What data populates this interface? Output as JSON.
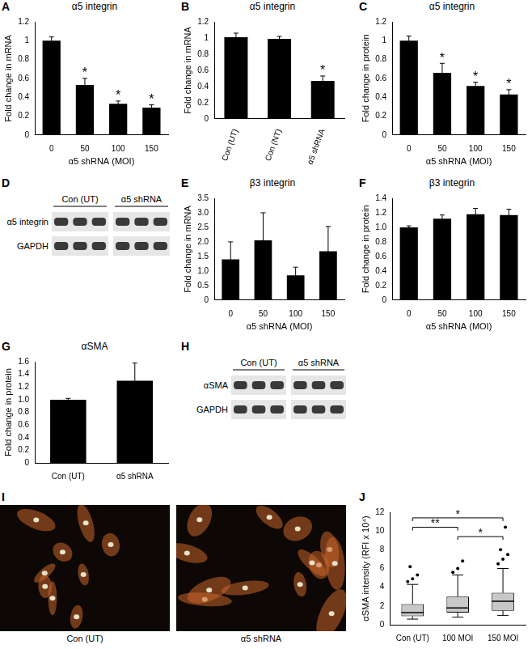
{
  "chart_data": [
    {
      "panel": "A",
      "type": "bar",
      "title": "α5 integrin",
      "categories": [
        "0",
        "50",
        "100",
        "150"
      ],
      "values": [
        1.0,
        0.53,
        0.33,
        0.29
      ],
      "errors": [
        0.04,
        0.07,
        0.03,
        0.03
      ],
      "annotations": [
        {
          "category": "50",
          "text": "*"
        },
        {
          "category": "100",
          "text": "*"
        },
        {
          "category": "150",
          "text": "*"
        }
      ],
      "x_label": "α5 shRNA (MOI)",
      "y_label": "Fold change in mRNA",
      "ylim": [
        0,
        1.2
      ],
      "yticks": [
        0,
        0.2,
        0.4,
        0.6,
        0.8,
        1,
        1.2
      ],
      "color": "#000000",
      "grid": false
    },
    {
      "panel": "B",
      "type": "bar",
      "title": "α5 integrin",
      "categories": [
        "Con (UT)",
        "Con (NT)",
        "α5 shRNA"
      ],
      "values": [
        1.01,
        0.99,
        0.47
      ],
      "errors": [
        0.05,
        0.03,
        0.06
      ],
      "annotations": [
        {
          "category": "α5 shRNA",
          "text": "*"
        }
      ],
      "y_label": "Fold change in mRNA",
      "ylim": [
        0,
        1.2
      ],
      "yticks": [
        0,
        0.2,
        0.4,
        0.6,
        0.8,
        1,
        1.2
      ],
      "color": "#000000",
      "grid": false
    },
    {
      "panel": "C",
      "type": "bar",
      "title": "α5 integrin",
      "categories": [
        "0",
        "50",
        "100",
        "150"
      ],
      "values": [
        1.0,
        0.66,
        0.52,
        0.43
      ],
      "errors": [
        0.05,
        0.1,
        0.04,
        0.05
      ],
      "annotations": [
        {
          "category": "50",
          "text": "*"
        },
        {
          "category": "100",
          "text": "*"
        },
        {
          "category": "150",
          "text": "*"
        }
      ],
      "x_label": "α5 shRNA (MOI)",
      "y_label": "Fold change in protein",
      "ylim": [
        0,
        1.2
      ],
      "yticks": [
        0,
        0.2,
        0.4,
        0.6,
        0.8,
        1,
        1.2
      ],
      "color": "#000000",
      "grid": false
    },
    {
      "panel": "E",
      "type": "bar",
      "title": "β3 integrin",
      "categories": [
        "0",
        "50",
        "100",
        "150"
      ],
      "values": [
        1.4,
        2.05,
        0.85,
        1.68
      ],
      "errors": [
        0.6,
        0.95,
        0.28,
        0.85
      ],
      "x_label": "α5 shRNA (MOI)",
      "y_label": "Fold change in mRNA",
      "ylim": [
        0,
        3.5
      ],
      "yticks": [
        0,
        0.5,
        {
          "value": 1,
          "label": "1.0"
        },
        1.5,
        {
          "value": 2,
          "label": "2.0"
        },
        2.5,
        {
          "value": 3,
          "label": "3.0"
        },
        3.5
      ],
      "color": "#000000",
      "grid": false
    },
    {
      "panel": "F",
      "type": "bar",
      "title": "β3 integrin",
      "categories": [
        "0",
        "50",
        "100",
        "150"
      ],
      "values": [
        1.0,
        1.12,
        1.18,
        1.17
      ],
      "errors": [
        0.02,
        0.05,
        0.08,
        0.08
      ],
      "x_label": "α5 shRNA (MOI)",
      "y_label": "Fold change in protein",
      "ylim": [
        0,
        1.4
      ],
      "yticks": [
        0,
        0.2,
        0.4,
        0.6,
        0.8,
        {
          "value": 1,
          "label": "1.0"
        },
        1.2,
        1.4
      ],
      "color": "#000000",
      "grid": false
    },
    {
      "panel": "G",
      "type": "bar",
      "title": "αSMA",
      "categories": [
        "Con (UT)",
        "α5 shRNA"
      ],
      "values": [
        1.0,
        1.3
      ],
      "errors": [
        0.02,
        0.28
      ],
      "y_label": "Fold change in protein",
      "ylim": [
        0,
        1.6
      ],
      "yticks": [
        0,
        0.2,
        0.4,
        0.6,
        0.8,
        {
          "value": 1,
          "label": "1.0"
        },
        1.2,
        1.4,
        1.6
      ],
      "color": "#000000",
      "grid": false
    },
    {
      "panel": "J",
      "type": "box",
      "categories": [
        "Con (UT)",
        "100 MOI",
        "150 MOI"
      ],
      "boxes": [
        {
          "whisker_low": 0.6,
          "q1": 0.9,
          "median": 1.3,
          "q3": 2.2,
          "whisker_high": 4.3
        },
        {
          "whisker_low": 0.8,
          "q1": 1.3,
          "median": 1.8,
          "q3": 3.0,
          "whisker_high": 5.3
        },
        {
          "whisker_low": 1.0,
          "q1": 1.5,
          "median": 2.5,
          "q3": 3.4,
          "whisker_high": 6.0
        }
      ],
      "outliers": [
        [
          4.6,
          4.9,
          5.3,
          6.2
        ],
        [
          5.6,
          6.0,
          6.8
        ],
        [
          6.5,
          7.0,
          7.5,
          8.0,
          10.4
        ]
      ],
      "brackets": [
        {
          "from": "Con (UT)",
          "to": "150 MOI",
          "y": 11.4,
          "text": "*"
        },
        {
          "from": "Con (UT)",
          "to": "100 MOI",
          "y": 10.4,
          "text": "**"
        },
        {
          "from": "100 MOI",
          "to": "150 MOI",
          "y": 9.4,
          "text": "*"
        }
      ],
      "y_label": "αSMA intensity (RFI x 10⁴)",
      "ylim": [
        0,
        12
      ],
      "yticks": [
        0,
        2,
        4,
        6,
        8,
        10,
        12
      ],
      "color": "#c8c8c8",
      "grid": false
    }
  ],
  "blots": [
    {
      "panel": "D",
      "groups": [
        "Con (UT)",
        "α5 shRNA"
      ],
      "rows": [
        "α5 integrin",
        "GAPDH"
      ]
    },
    {
      "panel": "H",
      "groups": [
        "Con (UT)",
        "α5 shRNA"
      ],
      "rows": [
        "αSMA",
        "GAPDH"
      ]
    }
  ],
  "images": {
    "panel": "I",
    "captions": [
      "Con (UT)",
      "α5 shRNA"
    ]
  }
}
